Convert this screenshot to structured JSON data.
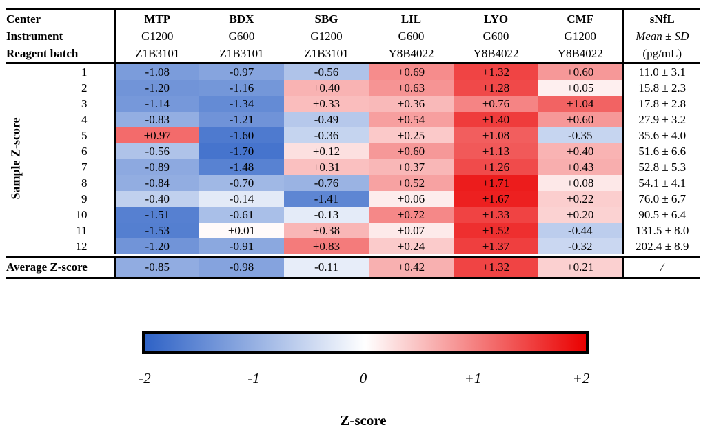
{
  "header": {
    "row_labels": [
      "Center",
      "Instrument",
      "Reagent batch"
    ],
    "columns": [
      {
        "center": "MTP",
        "instrument": "G1200",
        "batch": "Z1B3101"
      },
      {
        "center": "BDX",
        "instrument": "G600",
        "batch": "Z1B3101"
      },
      {
        "center": "SBG",
        "instrument": "G1200",
        "batch": "Z1B3101"
      },
      {
        "center": "LIL",
        "instrument": "G600",
        "batch": "Y8B4022"
      },
      {
        "center": "LYO",
        "instrument": "G600",
        "batch": "Y8B4022"
      },
      {
        "center": "CMF",
        "instrument": "G1200",
        "batch": "Y8B4022"
      }
    ],
    "snfl": {
      "title": "sNfL",
      "subtitle": "Mean ± SD",
      "unit": "(pg/mL)"
    }
  },
  "side_label": "Sample Z-score",
  "average_label": "Average Z-score",
  "chart_data": {
    "type": "heatmap",
    "rows": [
      "1",
      "2",
      "3",
      "4",
      "5",
      "6",
      "7",
      "8",
      "9",
      "10",
      "11",
      "12"
    ],
    "columns": [
      "MTP",
      "BDX",
      "SBG",
      "LIL",
      "LYO",
      "CMF"
    ],
    "values": [
      [
        -1.08,
        -0.97,
        -0.56,
        0.69,
        1.32,
        0.6
      ],
      [
        -1.2,
        -1.16,
        0.4,
        0.63,
        1.28,
        0.05
      ],
      [
        -1.14,
        -1.34,
        0.33,
        0.36,
        0.76,
        1.04
      ],
      [
        -0.83,
        -1.21,
        -0.49,
        0.54,
        1.4,
        0.6
      ],
      [
        0.97,
        -1.6,
        -0.36,
        0.25,
        1.08,
        -0.35
      ],
      [
        -0.56,
        -1.7,
        0.12,
        0.6,
        1.13,
        0.4
      ],
      [
        -0.89,
        -1.48,
        0.31,
        0.37,
        1.26,
        0.43
      ],
      [
        -0.84,
        -0.7,
        -0.76,
        0.52,
        1.71,
        0.08
      ],
      [
        -0.4,
        -0.14,
        -1.41,
        0.06,
        1.67,
        0.22
      ],
      [
        -1.51,
        -0.61,
        -0.13,
        0.72,
        1.33,
        0.2
      ],
      [
        -1.53,
        0.01,
        0.38,
        0.07,
        1.52,
        -0.44
      ],
      [
        -1.2,
        -0.91,
        0.83,
        0.24,
        1.37,
        -0.32
      ]
    ],
    "labels": [
      [
        "-1.08",
        "-0.97",
        "-0.56",
        "+0.69",
        "+1.32",
        "+0.60"
      ],
      [
        "-1.20",
        "-1.16",
        "+0.40",
        "+0.63",
        "+1.28",
        "+0.05"
      ],
      [
        "-1.14",
        "-1.34",
        "+0.33",
        "+0.36",
        "+0.76",
        "+1.04"
      ],
      [
        "-0.83",
        "-1.21",
        "-0.49",
        "+0.54",
        "+1.40",
        "+0.60"
      ],
      [
        "+0.97",
        "-1.60",
        "-0.36",
        "+0.25",
        "+1.08",
        "-0.35"
      ],
      [
        "-0.56",
        "-1.70",
        "+0.12",
        "+0.60",
        "+1.13",
        "+0.40"
      ],
      [
        "-0.89",
        "-1.48",
        "+0.31",
        "+0.37",
        "+1.26",
        "+0.43"
      ],
      [
        "-0.84",
        "-0.70",
        "-0.76",
        "+0.52",
        "+1.71",
        "+0.08"
      ],
      [
        "-0.40",
        "-0.14",
        "-1.41",
        "+0.06",
        "+1.67",
        "+0.22"
      ],
      [
        "-1.51",
        "-0.61",
        "-0.13",
        "+0.72",
        "+1.33",
        "+0.20"
      ],
      [
        "-1.53",
        "+0.01",
        "+0.38",
        "+0.07",
        "+1.52",
        "-0.44"
      ],
      [
        "-1.20",
        "-0.91",
        "+0.83",
        "+0.24",
        "+1.37",
        "-0.32"
      ]
    ],
    "average_values": [
      -0.85,
      -0.98,
      -0.11,
      0.42,
      1.32,
      0.21
    ],
    "average_labels": [
      "-0.85",
      "-0.98",
      "-0.11",
      "+0.42",
      "+1.32",
      "+0.21"
    ],
    "snfl_values": [
      "11.0 ± 3.1",
      "15.8 ± 2.3",
      "17.8 ± 2.8",
      "27.9 ± 3.2",
      "35.6 ± 4.0",
      "51.6 ± 6.6",
      "52.8 ± 5.3",
      "54.1 ± 4.1",
      "76.0 ± 6.7",
      "90.5 ± 6.4",
      "131.5 ± 8.0",
      "202.4 ± 8.9"
    ],
    "snfl_average": "/",
    "scale": {
      "min": -2,
      "max": 2,
      "low_color": "#2e62c6",
      "mid_color": "#ffffff",
      "high_color": "#ea0000"
    },
    "colorbar": {
      "ticks": [
        "-2",
        "-1",
        "0",
        "+1",
        "+2"
      ],
      "title": "Z-score"
    }
  }
}
